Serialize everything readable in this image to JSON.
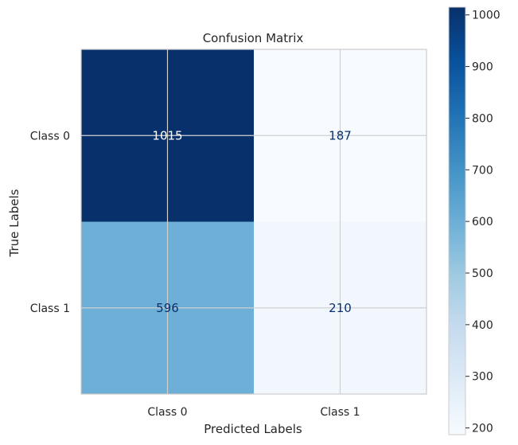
{
  "chart_data": {
    "type": "heatmap",
    "title": "Confusion Matrix",
    "xlabel": "Predicted Labels",
    "ylabel": "True Labels",
    "x_categories": [
      "Class 0",
      "Class 1"
    ],
    "y_categories": [
      "Class 0",
      "Class 1"
    ],
    "values": [
      [
        1015,
        187
      ],
      [
        596,
        210
      ]
    ],
    "colormap": "Blues",
    "color_range": [
      187,
      1015
    ],
    "colorbar_ticks": [
      200,
      300,
      400,
      500,
      600,
      700,
      800,
      900,
      1000
    ],
    "grid": true,
    "colors": {
      "low": "#f7fbff",
      "high": "#08306b",
      "dark_text": "#08306b",
      "light_text": "#ffffff"
    }
  }
}
